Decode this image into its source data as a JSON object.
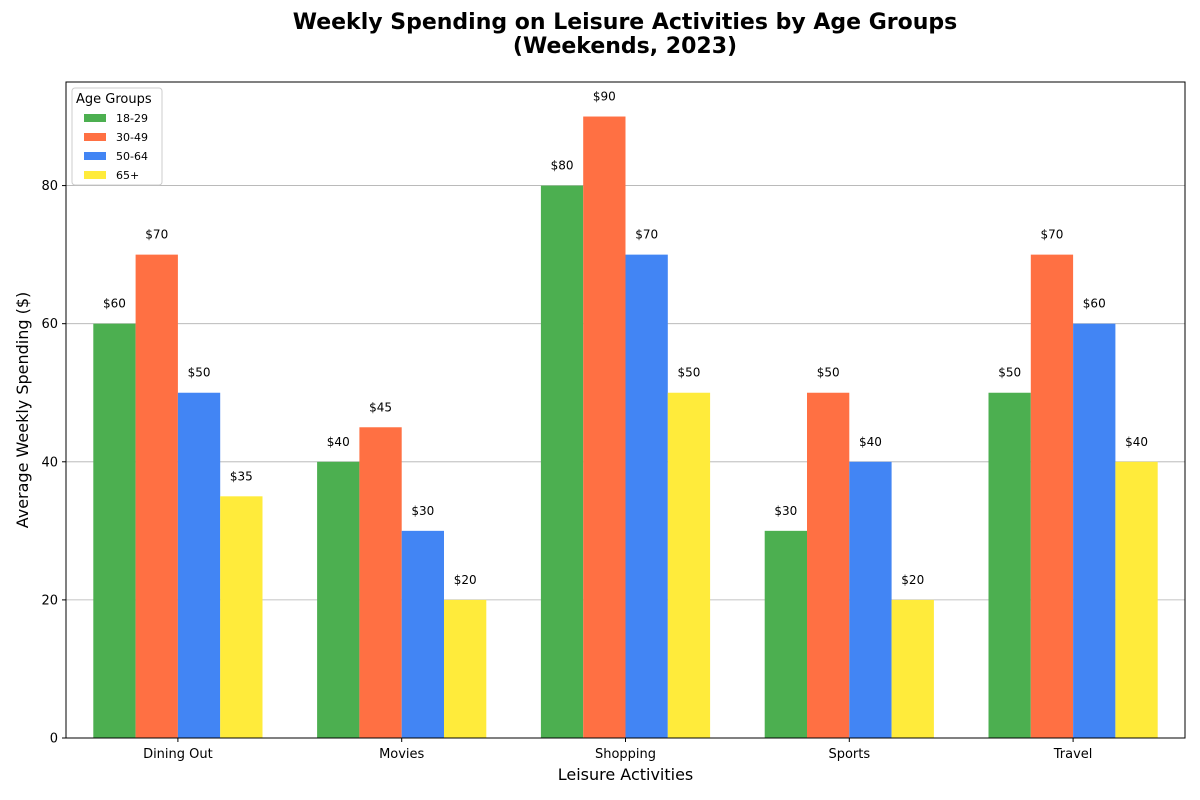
{
  "chart_data": {
    "type": "bar",
    "title": "Weekly Spending on Leisure Activities by Age Groups",
    "subtitle": "(Weekends, 2023)",
    "xlabel": "Leisure Activities",
    "ylabel": "Average Weekly Spending ($)",
    "categories": [
      "Dining Out",
      "Movies",
      "Shopping",
      "Sports",
      "Travel"
    ],
    "series": [
      {
        "name": "18-29",
        "color": "#4caf50",
        "values": [
          60,
          40,
          80,
          30,
          50
        ]
      },
      {
        "name": "30-49",
        "color": "#ff7043",
        "values": [
          70,
          45,
          90,
          50,
          70
        ]
      },
      {
        "name": "50-64",
        "color": "#4285f4",
        "values": [
          50,
          30,
          70,
          40,
          60
        ]
      },
      {
        "name": "65+",
        "color": "#ffeb3b",
        "values": [
          35,
          20,
          50,
          20,
          40
        ]
      }
    ],
    "ylim": [
      0,
      95
    ],
    "yticks": [
      0,
      20,
      40,
      60,
      80
    ],
    "grid": true,
    "legend": {
      "title": "Age Groups",
      "placement": "top-left"
    },
    "value_label_prefix": "$"
  }
}
